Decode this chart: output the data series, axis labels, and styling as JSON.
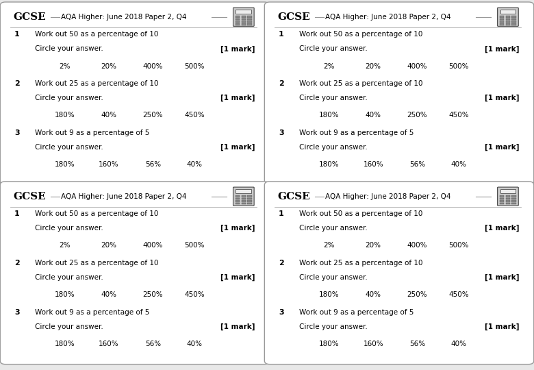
{
  "header_gcse": "GCSE",
  "header_title": "AQA Higher: June 2018 Paper 2, Q4",
  "bg_color": "#e8e8e8",
  "panel_bg": "#ffffff",
  "panel_border": "#999999",
  "questions": [
    {
      "number": "1",
      "text_line1": "Work out 50 as a percentage of 10",
      "text_line2": "Circle your answer.",
      "mark": "[1 mark]",
      "options": [
        "2%",
        "20%",
        "400%",
        "500%"
      ]
    },
    {
      "number": "2",
      "text_line1": "Work out 25 as a percentage of 10",
      "text_line2": "Circle your answer.",
      "mark": "[1 mark]",
      "options": [
        "180%",
        "40%",
        "250%",
        "450%"
      ]
    },
    {
      "number": "3",
      "text_line1": "Work out 9 as a percentage of 5",
      "text_line2": "Circle your answer.",
      "mark": "[1 mark]",
      "options": [
        "180%",
        "160%",
        "56%",
        "40%"
      ]
    }
  ],
  "gcse_fontsize": 11,
  "title_fontsize": 7.5,
  "question_num_fontsize": 8,
  "question_text_fontsize": 7.5,
  "mark_fontsize": 7.5,
  "option_fontsize": 7.5,
  "line_color": "#999999",
  "separator_color": "#aaaaaa"
}
